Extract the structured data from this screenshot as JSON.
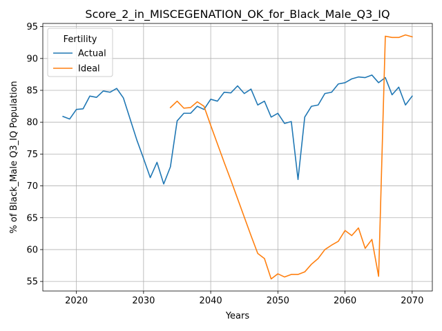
{
  "chart_data": {
    "type": "line",
    "title": "Score_2_in_MISCEGENATION_OK_for_Black_Male_Q3_IQ",
    "xlabel": "Years",
    "ylabel": "% of Black_Male Q3_IQ Population",
    "xlim": [
      2015,
      2073
    ],
    "ylim": [
      53.5,
      95.5
    ],
    "xticks": [
      2020,
      2030,
      2040,
      2050,
      2060,
      2070
    ],
    "yticks": [
      55,
      60,
      65,
      70,
      75,
      80,
      85,
      90,
      95
    ],
    "grid": true,
    "legend": {
      "title": "Fertility",
      "position": "top-left"
    },
    "series": [
      {
        "name": "Actual",
        "color": "#1f77b4",
        "x": [
          2018,
          2019,
          2020,
          2021,
          2022,
          2023,
          2024,
          2025,
          2026,
          2027,
          2028,
          2029,
          2030,
          2031,
          2032,
          2033,
          2034,
          2035,
          2036,
          2037,
          2038,
          2039,
          2040,
          2041,
          2042,
          2043,
          2044,
          2045,
          2046,
          2047,
          2048,
          2049,
          2050,
          2051,
          2052,
          2053,
          2054,
          2055,
          2056,
          2057,
          2058,
          2059,
          2060,
          2061,
          2062,
          2063,
          2064,
          2065,
          2066,
          2067,
          2068,
          2069,
          2070
        ],
        "values": [
          80.9,
          80.5,
          82.0,
          82.1,
          84.1,
          83.9,
          84.9,
          84.7,
          85.3,
          83.8,
          80.5,
          77.2,
          74.3,
          71.3,
          73.7,
          70.3,
          73.0,
          80.2,
          81.4,
          81.4,
          82.5,
          82.0,
          83.6,
          83.3,
          84.7,
          84.6,
          85.7,
          84.5,
          85.2,
          82.7,
          83.3,
          80.8,
          81.4,
          79.8,
          80.1,
          71.0,
          80.8,
          82.5,
          82.7,
          84.5,
          84.7,
          86.0,
          86.2,
          86.8,
          87.1,
          87.0,
          87.4,
          86.2,
          87.0,
          84.3,
          85.5,
          82.7,
          84.1
        ]
      },
      {
        "name": "Ideal",
        "color": "#ff7f0e",
        "x": [
          2034,
          2035,
          2036,
          2037,
          2038,
          2039,
          2040,
          2041,
          2042,
          2043,
          2044,
          2045,
          2046,
          2047,
          2048,
          2049,
          2050,
          2051,
          2052,
          2053,
          2054,
          2055,
          2056,
          2057,
          2058,
          2059,
          2060,
          2061,
          2062,
          2063,
          2064,
          2065,
          2066,
          2067,
          2068,
          2069,
          2070
        ],
        "values": [
          82.3,
          83.3,
          82.2,
          82.3,
          83.2,
          82.5,
          79.5,
          76.6,
          73.7,
          70.9,
          68.0,
          65.1,
          62.2,
          59.4,
          58.6,
          55.4,
          56.2,
          55.7,
          56.1,
          56.1,
          56.5,
          57.7,
          58.6,
          60.0,
          60.7,
          61.3,
          63.0,
          62.2,
          63.4,
          60.2,
          61.6,
          55.8,
          93.5,
          93.3,
          93.3,
          93.7,
          93.4
        ]
      }
    ]
  }
}
